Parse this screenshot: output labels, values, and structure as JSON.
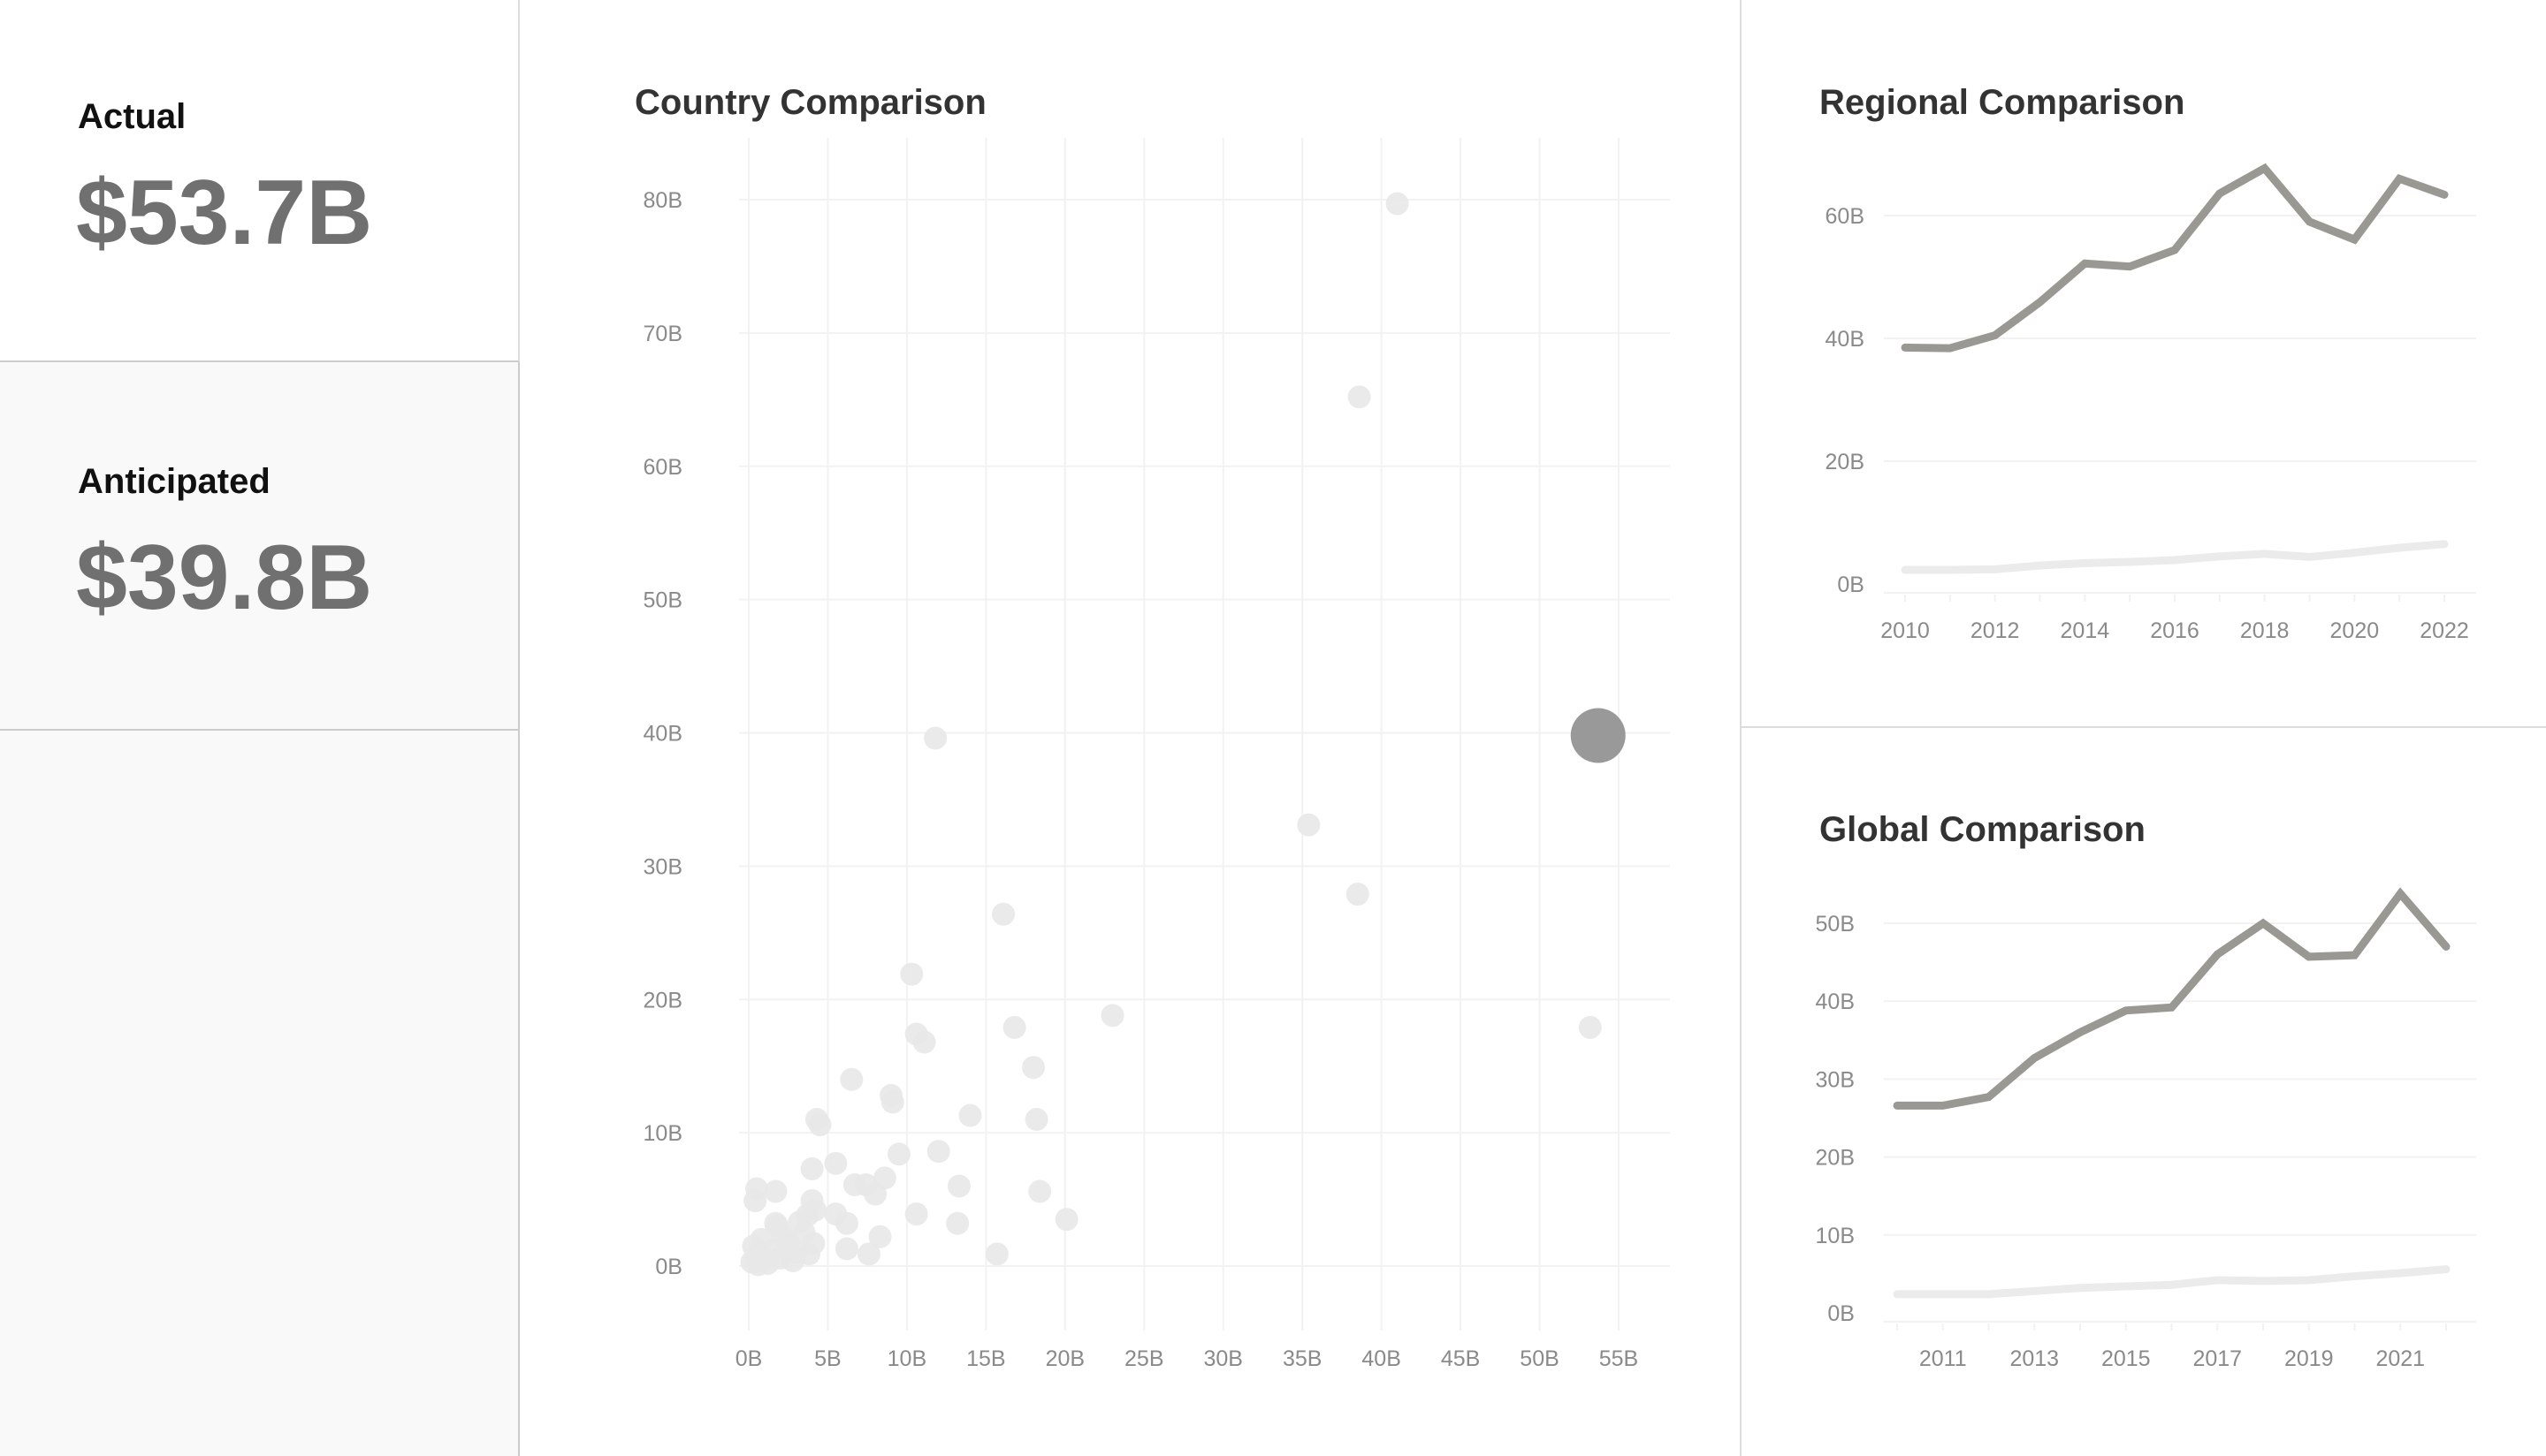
{
  "kpis": {
    "actual": {
      "label": "Actual",
      "value": "$53.7B"
    },
    "anticipated": {
      "label": "Anticipated",
      "value": "$39.8B"
    }
  },
  "colors": {
    "highlight": "#999999",
    "muted": "#e8e8e8",
    "line_main": "#999893",
    "line_light": "#ebebeb",
    "grid": "#f2f2f2"
  },
  "chart_data": [
    {
      "type": "scatter",
      "title": "Country Comparison",
      "xlabel": "",
      "ylabel": "",
      "xlim": [
        0,
        57
      ],
      "ylim": [
        -5,
        84
      ],
      "x_ticks": [
        "0B",
        "5B",
        "10B",
        "15B",
        "20B",
        "25B",
        "30B",
        "35B",
        "40B",
        "45B",
        "50B",
        "55B"
      ],
      "x_tick_values": [
        0,
        5,
        10,
        15,
        20,
        25,
        30,
        35,
        40,
        45,
        50,
        55
      ],
      "y_ticks": [
        "0B",
        "10B",
        "20B",
        "30B",
        "40B",
        "50B",
        "60B",
        "70B",
        "80B"
      ],
      "y_tick_values": [
        0,
        10,
        20,
        30,
        40,
        50,
        60,
        70,
        80
      ],
      "grid": true,
      "highlight": {
        "x": 53.7,
        "y": 39.8
      },
      "points": [
        [
          41.0,
          79.7
        ],
        [
          38.6,
          65.2
        ],
        [
          11.8,
          39.6
        ],
        [
          35.4,
          33.1
        ],
        [
          38.5,
          27.9
        ],
        [
          16.1,
          26.4
        ],
        [
          53.2,
          17.9
        ],
        [
          10.3,
          21.9
        ],
        [
          10.6,
          17.4
        ],
        [
          11.1,
          16.8
        ],
        [
          16.8,
          17.9
        ],
        [
          23.0,
          18.8
        ],
        [
          18.0,
          14.9
        ],
        [
          6.5,
          14.0
        ],
        [
          9.0,
          12.8
        ],
        [
          9.1,
          12.3
        ],
        [
          14.0,
          11.3
        ],
        [
          4.3,
          11.0
        ],
        [
          4.5,
          10.6
        ],
        [
          18.2,
          11.0
        ],
        [
          12.0,
          8.6
        ],
        [
          9.5,
          8.4
        ],
        [
          5.5,
          7.7
        ],
        [
          4.0,
          7.3
        ],
        [
          8.6,
          6.6
        ],
        [
          6.7,
          6.1
        ],
        [
          7.4,
          6.1
        ],
        [
          13.3,
          6.0
        ],
        [
          8.0,
          5.4
        ],
        [
          18.4,
          5.6
        ],
        [
          0.5,
          5.8
        ],
        [
          1.7,
          5.6
        ],
        [
          0.4,
          4.9
        ],
        [
          4.0,
          4.9
        ],
        [
          10.6,
          3.9
        ],
        [
          5.5,
          3.9
        ],
        [
          20.1,
          3.5
        ],
        [
          13.2,
          3.2
        ],
        [
          6.2,
          3.2
        ],
        [
          8.3,
          2.2
        ],
        [
          6.2,
          1.3
        ],
        [
          7.6,
          0.9
        ],
        [
          15.7,
          0.9
        ],
        [
          0.2,
          0.3
        ],
        [
          0.5,
          0.8
        ],
        [
          1.0,
          0.5
        ],
        [
          1.5,
          1.2
        ],
        [
          2.0,
          0.6
        ],
        [
          2.5,
          1.8
        ],
        [
          3.0,
          1.0
        ],
        [
          3.5,
          2.5
        ],
        [
          0.8,
          2.0
        ],
        [
          1.8,
          3.0
        ],
        [
          0.3,
          1.5
        ],
        [
          2.8,
          0.4
        ],
        [
          3.8,
          0.9
        ],
        [
          1.2,
          0.2
        ],
        [
          4.1,
          1.7
        ],
        [
          3.2,
          3.3
        ],
        [
          0.6,
          0.1
        ],
        [
          2.2,
          2.2
        ],
        [
          1.7,
          3.2
        ],
        [
          3.7,
          3.8
        ],
        [
          4.2,
          4.2
        ]
      ]
    },
    {
      "type": "line",
      "title": "Regional Comparison",
      "xlim": [
        2009.5,
        2022.7
      ],
      "ylim": [
        -2,
        70
      ],
      "x_ticks": [
        "2010",
        "2012",
        "2014",
        "2016",
        "2018",
        "2020",
        "2022"
      ],
      "y_ticks": [
        "0B",
        "20B",
        "40B",
        "60B"
      ],
      "y_tick_values": [
        0,
        20,
        40,
        60
      ],
      "grid": true,
      "x": [
        2010,
        2011,
        2012,
        2013,
        2014,
        2015,
        2016,
        2017,
        2018,
        2019,
        2020,
        2021,
        2022
      ],
      "series": [
        {
          "values": [
            38.5,
            38.4,
            40.5,
            45.9,
            52.2,
            51.7,
            54.4,
            63.6,
            67.7,
            59.0,
            56.1,
            66.0,
            63.4
          ],
          "color": "#999893"
        },
        {
          "values": [
            2.3,
            2.3,
            2.4,
            3.0,
            3.4,
            3.6,
            3.9,
            4.5,
            4.9,
            4.4,
            5.1,
            5.9,
            6.5
          ],
          "color": "#ebebeb"
        }
      ]
    },
    {
      "type": "line",
      "title": "Global Comparison",
      "xlim": [
        2009.5,
        2022.7
      ],
      "ylim": [
        -1.5,
        55
      ],
      "x_ticks": [
        "2011",
        "2013",
        "2015",
        "2017",
        "2019",
        "2021"
      ],
      "y_ticks": [
        "0B",
        "10B",
        "20B",
        "30B",
        "40B",
        "50B"
      ],
      "y_tick_values": [
        0,
        10,
        20,
        30,
        40,
        50
      ],
      "grid": true,
      "x": [
        2010,
        2011,
        2012,
        2013,
        2014,
        2015,
        2016,
        2017,
        2018,
        2019,
        2020,
        2021,
        2022
      ],
      "series": [
        {
          "values": [
            26.6,
            26.6,
            27.7,
            32.7,
            36.0,
            38.8,
            39.2,
            46.0,
            50.0,
            45.7,
            45.9,
            53.8,
            47.0
          ],
          "color": "#999893"
        },
        {
          "values": [
            2.4,
            2.4,
            2.4,
            2.8,
            3.2,
            3.4,
            3.6,
            4.2,
            4.1,
            4.2,
            4.7,
            5.1,
            5.6
          ],
          "color": "#ebebeb"
        }
      ]
    }
  ]
}
